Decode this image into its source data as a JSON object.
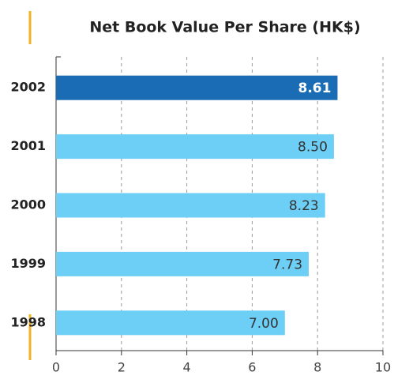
{
  "chart_data": {
    "type": "hbar",
    "title": "Net Book Value Per Share (HK$)",
    "categories": [
      "2002",
      "2001",
      "2000",
      "1999",
      "1998"
    ],
    "values": [
      8.61,
      8.5,
      8.23,
      7.73,
      7.0
    ],
    "value_labels": [
      "8.61",
      "8.50",
      "8.23",
      "7.73",
      "7.00"
    ],
    "colors": [
      "#1a6db5",
      "#6dcff6",
      "#6dcff6",
      "#6dcff6",
      "#6dcff6"
    ],
    "label_colors": [
      "#ffffff",
      "#333333",
      "#333333",
      "#333333",
      "#333333"
    ],
    "xlim": [
      0,
      10
    ],
    "xticks": [
      0,
      2,
      4,
      6,
      8,
      10
    ],
    "grid": true
  }
}
